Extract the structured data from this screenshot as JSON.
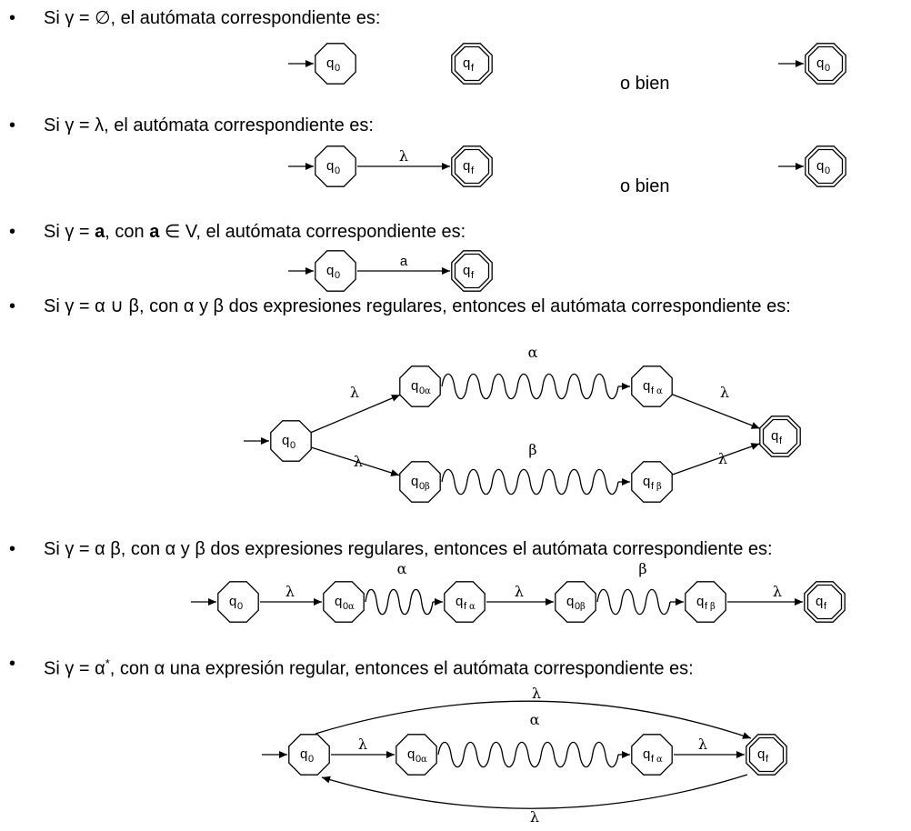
{
  "bullet": "•",
  "rules": [
    {
      "parts": [
        {
          "t": "Si γ = ∅, el autómata correspondiente es:"
        }
      ]
    },
    {
      "parts": [
        {
          "t": "Si γ = λ, el autómata correspondiente es:"
        }
      ]
    },
    {
      "parts": [
        {
          "t": "Si γ = "
        },
        {
          "t": "a",
          "b": true
        },
        {
          "t": ", con "
        },
        {
          "t": "a",
          "b": true
        },
        {
          "t": " ∈ V, el autómata correspondiente es:"
        }
      ]
    },
    {
      "parts": [
        {
          "t": "Si γ = α ∪ β, con α y β dos expresiones regulares, entonces el autómata correspondiente es:"
        }
      ]
    },
    {
      "parts": [
        {
          "t": "Si γ = α β, con α y β dos expresiones regulares, entonces el autómata correspondiente es:"
        }
      ]
    },
    {
      "parts": [
        {
          "t": "Si γ = α"
        },
        {
          "t": "*",
          "sup": true
        },
        {
          "t": ", con α una expresión regular, entonces el autómata correspondiente es:"
        }
      ]
    }
  ],
  "o_bien": "o bien",
  "diagram_labels": {
    "lambda": "λ",
    "alpha": "α",
    "beta": "β",
    "symbol_a": "a",
    "q": "q",
    "sub_0": "0",
    "sub_f": "f"
  }
}
